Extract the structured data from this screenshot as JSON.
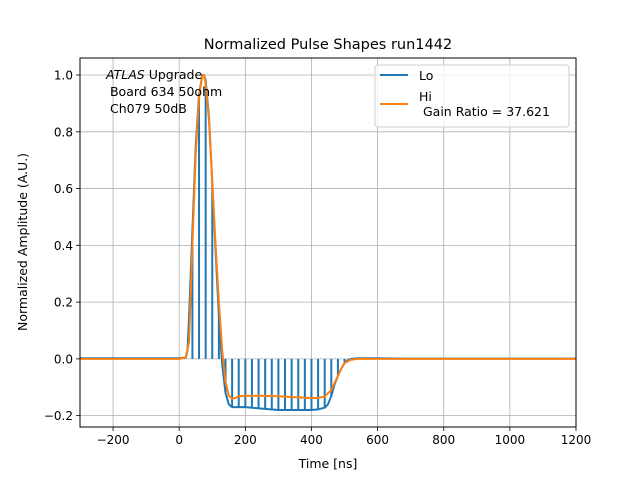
{
  "chart_data": {
    "type": "line",
    "title": "Normalized Pulse Shapes run1442",
    "xlabel": "Time [ns]",
    "ylabel": "Normalized Amplitude (A.U.)",
    "xlim": [
      -300,
      1200
    ],
    "ylim": [
      -0.24,
      1.06
    ],
    "xticks": [
      -200,
      0,
      200,
      400,
      600,
      800,
      1000,
      1200
    ],
    "xtick_labels": [
      "−200",
      "0",
      "200",
      "400",
      "600",
      "800",
      "1000",
      "1200"
    ],
    "yticks": [
      -0.2,
      0.0,
      0.2,
      0.4,
      0.6,
      0.8,
      1.0
    ],
    "ytick_labels": [
      "−0.2",
      "0.0",
      "0.2",
      "0.4",
      "0.6",
      "0.8",
      "1.0"
    ],
    "grid": true,
    "legend_position": "top-right",
    "annotation": {
      "line1_italic": "ATLAS",
      "line1_rest": " Upgrade",
      "line2": " Board 634 50ohm",
      "line3": " Ch079 50dB"
    },
    "series": [
      {
        "name": "Lo",
        "color": "#1f77b4",
        "x": [
          -300,
          -200,
          -100,
          0,
          20,
          25,
          30,
          40,
          50,
          60,
          70,
          75,
          80,
          90,
          100,
          110,
          120,
          130,
          140,
          150,
          160,
          170,
          180,
          200,
          250,
          300,
          350,
          400,
          420,
          440,
          450,
          460,
          470,
          480,
          490,
          500,
          510,
          520,
          540,
          600,
          700,
          800,
          900,
          1000,
          1100,
          1200
        ],
        "y": [
          0.002,
          0.002,
          0.002,
          0.002,
          0.005,
          0.03,
          0.15,
          0.45,
          0.75,
          0.93,
          1.0,
          1.0,
          0.98,
          0.85,
          0.62,
          0.38,
          0.15,
          -0.02,
          -0.12,
          -0.16,
          -0.17,
          -0.17,
          -0.17,
          -0.17,
          -0.175,
          -0.18,
          -0.18,
          -0.18,
          -0.178,
          -0.172,
          -0.16,
          -0.13,
          -0.09,
          -0.06,
          -0.035,
          -0.015,
          -0.005,
          0.0,
          0.002,
          0.002,
          0.001,
          0.001,
          0.001,
          0.001,
          0.001,
          0.001
        ],
        "spike_x": [
          40,
          60,
          80,
          100,
          120,
          140,
          160,
          180,
          200,
          220,
          240,
          260,
          280,
          300,
          320,
          340,
          360,
          380,
          400,
          420,
          440,
          460,
          480,
          500
        ]
      },
      {
        "name": "Hi\n Gain Ratio = 37.621",
        "color": "#ff7f0e",
        "x": [
          -300,
          -200,
          -100,
          0,
          20,
          30,
          40,
          50,
          60,
          70,
          75,
          80,
          90,
          100,
          110,
          120,
          130,
          140,
          150,
          160,
          170,
          180,
          200,
          250,
          300,
          350,
          400,
          420,
          440,
          460,
          470,
          480,
          490,
          500,
          520,
          540,
          600,
          700,
          800,
          900,
          1000,
          1100,
          1200
        ],
        "y": [
          0.0,
          0.0,
          0.0,
          0.0,
          0.005,
          0.06,
          0.4,
          0.72,
          0.92,
          1.0,
          1.0,
          0.97,
          0.84,
          0.62,
          0.4,
          0.2,
          0.03,
          -0.08,
          -0.13,
          -0.14,
          -0.138,
          -0.132,
          -0.13,
          -0.13,
          -0.132,
          -0.135,
          -0.138,
          -0.138,
          -0.132,
          -0.11,
          -0.085,
          -0.06,
          -0.035,
          -0.015,
          -0.003,
          0.0,
          0.0,
          0.0,
          0.0,
          0.0,
          0.0,
          0.0,
          0.0
        ]
      }
    ]
  }
}
